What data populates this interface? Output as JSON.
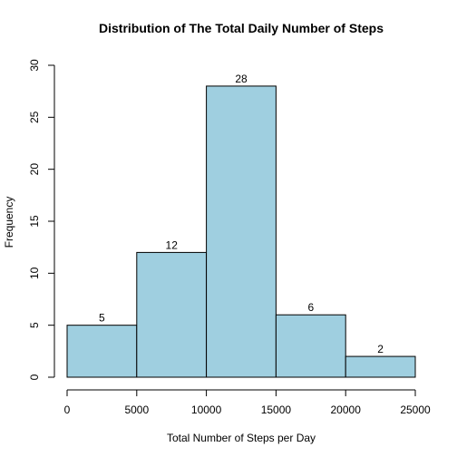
{
  "chart_data": {
    "type": "bar",
    "title": "Distribution of The Total Daily Number of Steps",
    "xlabel": "Total Number of Steps per Day",
    "ylabel": "Frequency",
    "bins": [
      [
        0,
        5000
      ],
      [
        5000,
        10000
      ],
      [
        10000,
        15000
      ],
      [
        15000,
        20000
      ],
      [
        20000,
        25000
      ]
    ],
    "values": [
      5,
      12,
      28,
      6,
      2
    ],
    "data_labels": [
      "5",
      "12",
      "28",
      "6",
      "2"
    ],
    "xlim": [
      0,
      25000
    ],
    "ylim": [
      0,
      30
    ],
    "x_ticks": [
      0,
      5000,
      10000,
      15000,
      20000,
      25000
    ],
    "x_tick_labels": [
      "0",
      "5000",
      "10000",
      "15000",
      "20000",
      "25000"
    ],
    "y_ticks": [
      0,
      5,
      10,
      15,
      20,
      25,
      30
    ],
    "y_tick_labels": [
      "0",
      "5",
      "10",
      "15",
      "20",
      "25",
      "30"
    ],
    "bar_color": "#9FCFE0",
    "grid": false,
    "legend": "none"
  }
}
